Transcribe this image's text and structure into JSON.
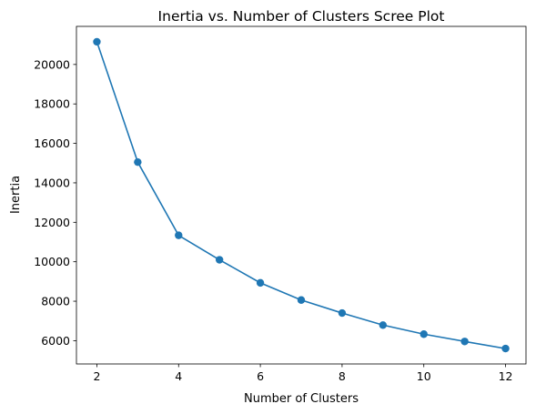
{
  "chart_data": {
    "type": "line",
    "title": "Inertia vs. Number of Clusters Scree Plot",
    "xlabel": "Number of Clusters",
    "ylabel": "Inertia",
    "x": [
      2,
      3,
      4,
      5,
      6,
      7,
      8,
      9,
      10,
      11,
      12
    ],
    "series": [
      {
        "values": [
          21150,
          15050,
          11340,
          10100,
          8930,
          8060,
          7400,
          6790,
          6330,
          5960,
          5600
        ],
        "color": "#1f77b4",
        "marker": "circle"
      }
    ],
    "xlim": [
      1.5,
      12.5
    ],
    "ylim": [
      4820,
      21930
    ],
    "xticks": [
      2,
      4,
      6,
      8,
      10,
      12
    ],
    "yticks": [
      6000,
      8000,
      10000,
      12000,
      14000,
      16000,
      18000,
      20000
    ],
    "grid": false,
    "legend": false
  }
}
